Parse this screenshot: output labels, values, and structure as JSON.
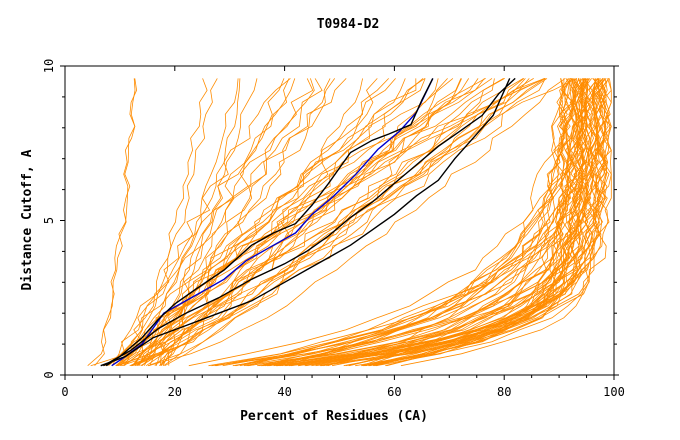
{
  "chart_data": {
    "type": "line",
    "title": "T0984-D2",
    "xlabel": "Percent of Residues (CA)",
    "ylabel": "Distance Cutoff, A",
    "xlim": [
      0,
      100
    ],
    "ylim": [
      0,
      10
    ],
    "x_ticks": [
      "0",
      "20",
      "40",
      "60",
      "80",
      "100"
    ],
    "y_ticks": [
      "0",
      "5",
      "10"
    ],
    "grid": false,
    "legend": "none",
    "colors": {
      "background_models": "#ff8c00",
      "highlight_black": "#000000",
      "highlight_blue": "#0000cc",
      "axes": "#000000"
    },
    "highlighted_series": [
      {
        "color": "blue",
        "x": [
          8.5,
          11,
          14,
          16,
          18,
          21,
          25,
          29,
          33,
          37,
          42,
          45,
          49,
          53,
          57,
          61,
          64,
          67
        ],
        "y": [
          0.3,
          0.6,
          1.0,
          1.5,
          2.0,
          2.3,
          2.7,
          3.1,
          3.7,
          4.1,
          4.6,
          5.2,
          5.8,
          6.5,
          7.3,
          7.9,
          8.5,
          9.6
        ]
      },
      {
        "color": "black",
        "x": [
          7.5,
          10,
          14,
          17,
          20,
          24,
          29,
          34,
          38,
          42,
          45,
          48,
          52,
          56,
          59,
          63,
          65,
          67
        ],
        "y": [
          0.3,
          0.6,
          1.2,
          1.8,
          2.3,
          2.8,
          3.4,
          4.2,
          4.6,
          4.9,
          5.5,
          6.2,
          7.2,
          7.6,
          7.8,
          8.1,
          8.9,
          9.6
        ]
      },
      {
        "color": "black",
        "x": [
          7,
          12,
          17,
          22,
          28,
          34,
          40,
          44,
          48,
          52,
          56,
          60,
          64,
          68,
          72,
          76,
          79,
          82
        ],
        "y": [
          0.3,
          0.8,
          1.5,
          2.0,
          2.5,
          3.1,
          3.6,
          4.0,
          4.5,
          5.1,
          5.6,
          6.2,
          6.8,
          7.4,
          7.9,
          8.4,
          9.1,
          9.6
        ]
      },
      {
        "color": "black",
        "x": [
          6.5,
          11,
          16,
          22,
          28,
          34,
          40,
          44,
          48,
          52,
          56,
          60,
          64,
          68,
          71,
          74,
          78,
          81
        ],
        "y": [
          0.3,
          0.6,
          1.2,
          1.6,
          2.0,
          2.4,
          3.0,
          3.4,
          3.8,
          4.2,
          4.7,
          5.2,
          5.8,
          6.3,
          7.0,
          7.6,
          8.4,
          9.6
        ]
      }
    ]
  }
}
